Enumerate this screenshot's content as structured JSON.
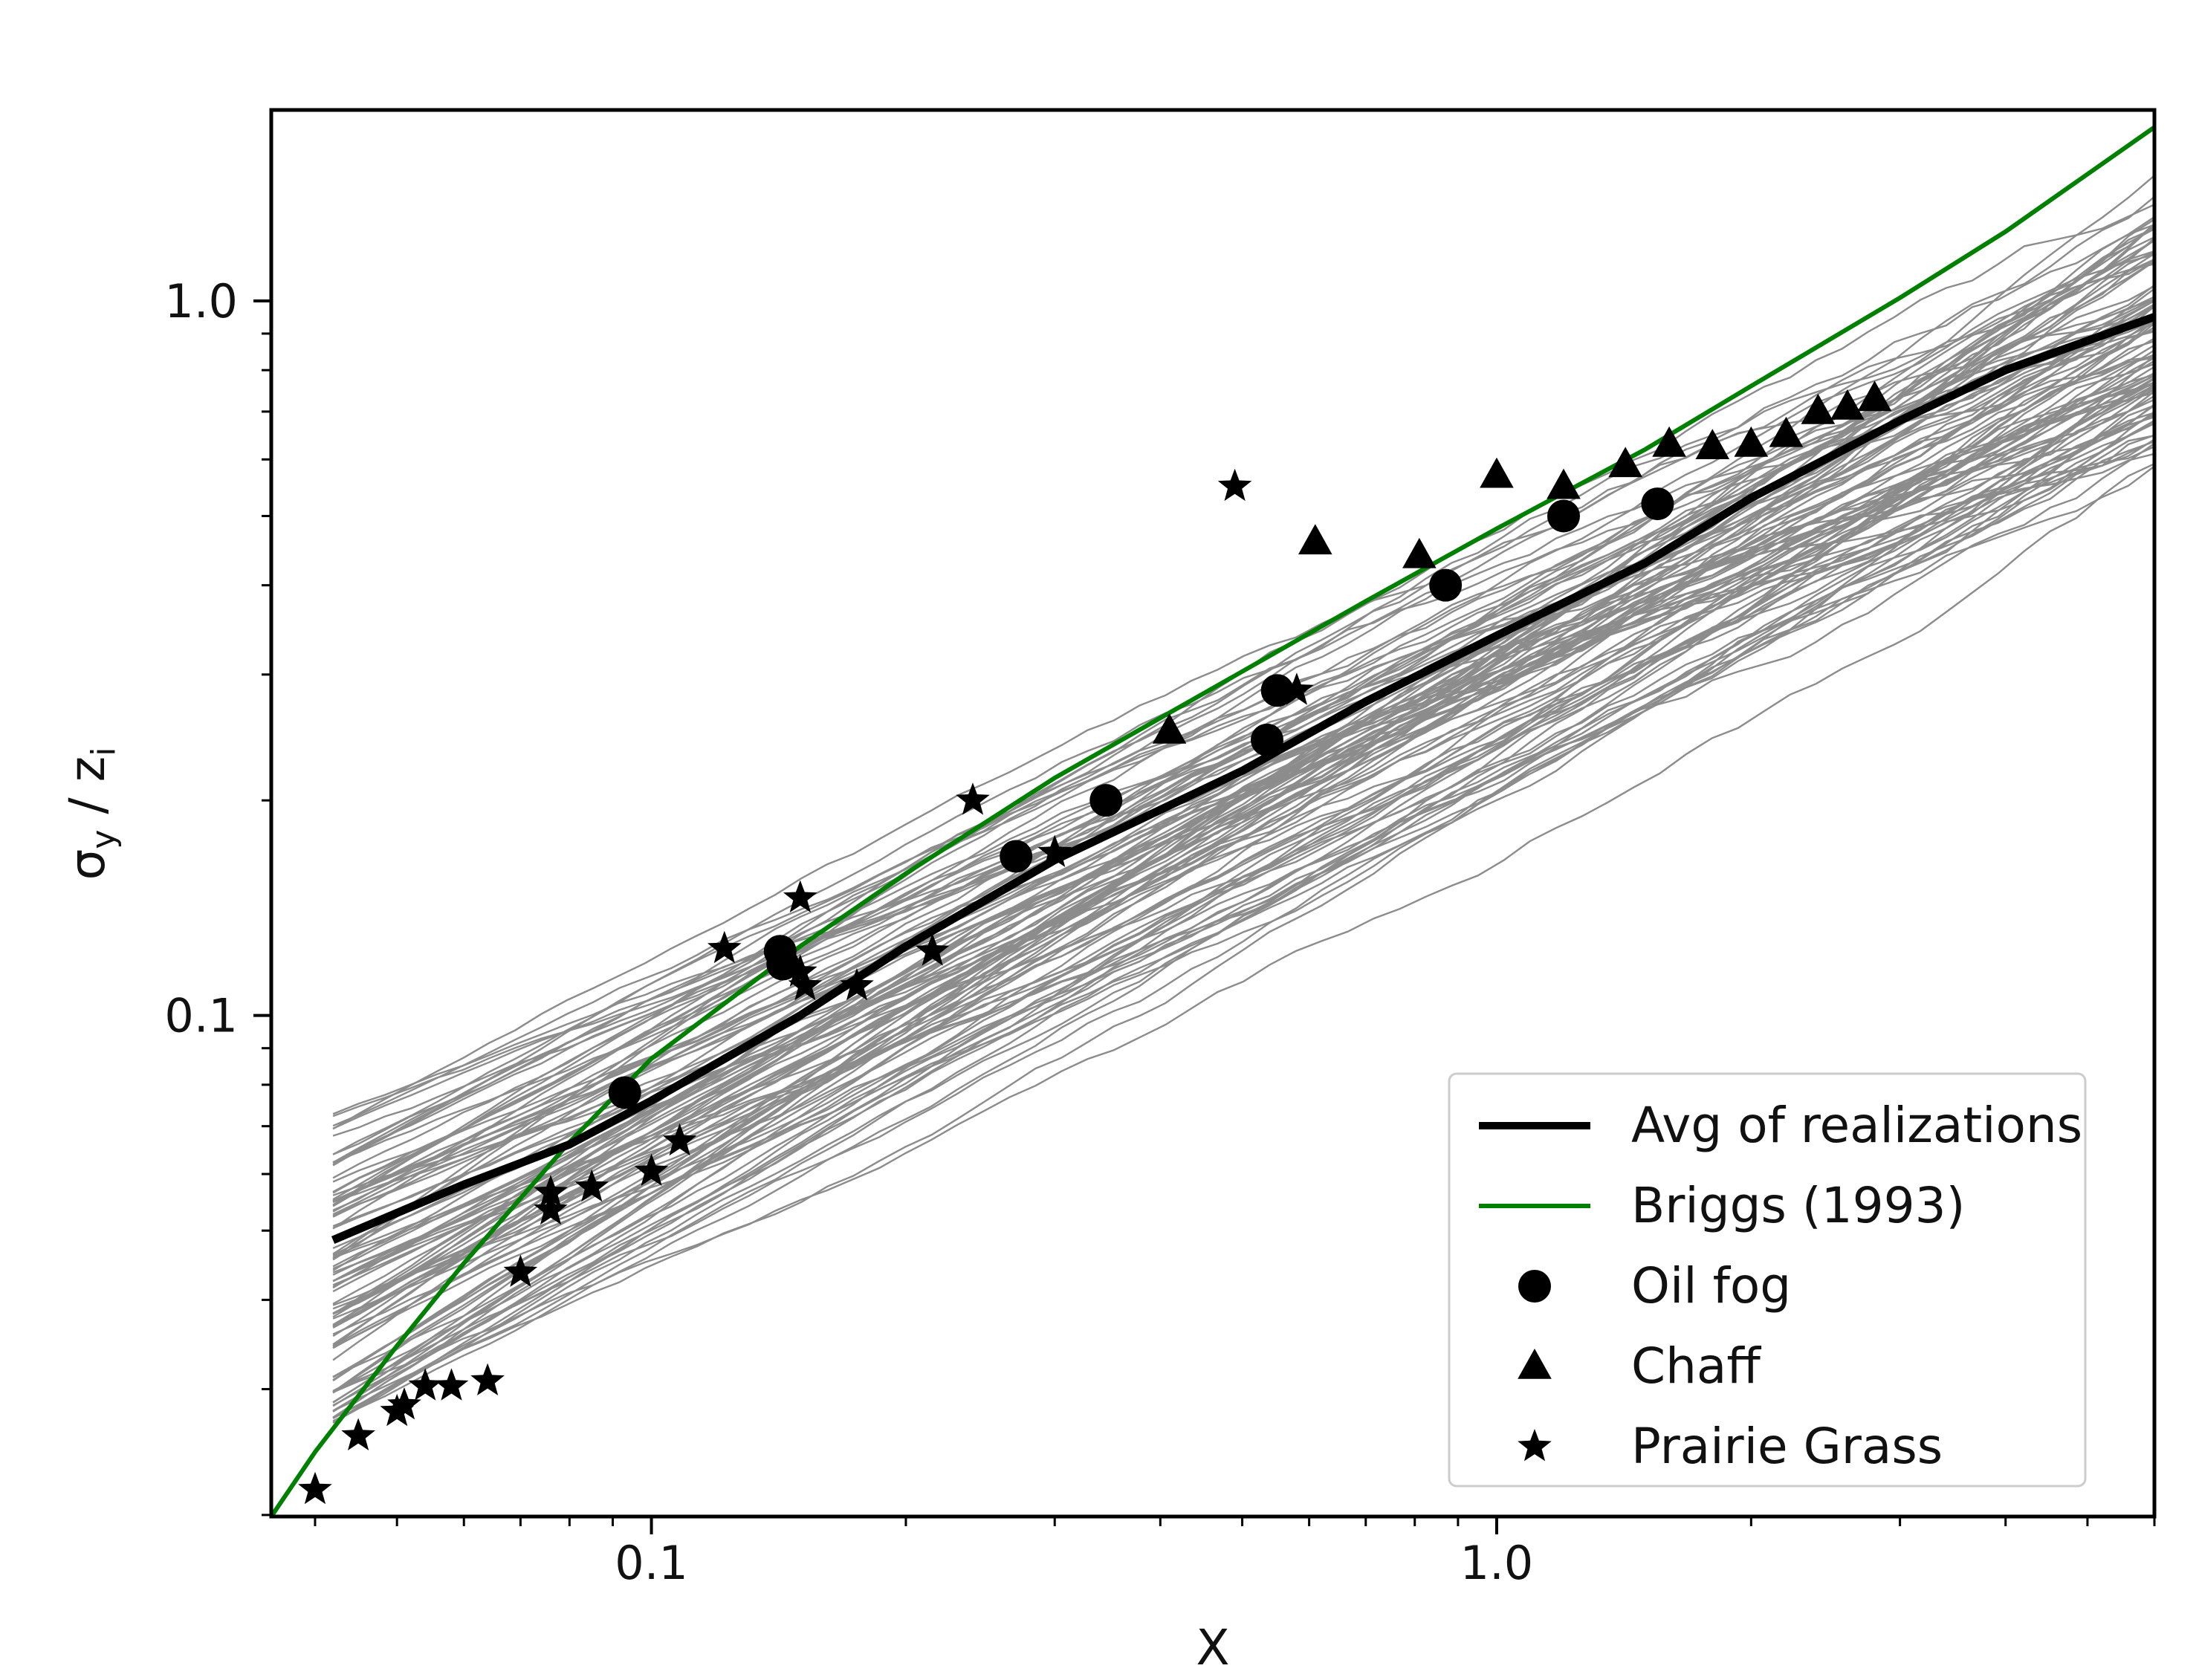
{
  "chart_data": {
    "type": "line",
    "xscale": "log",
    "yscale": "log",
    "xlabel": "X",
    "ylabel": "σy / zi",
    "ylabel_main": "σ",
    "ylabel_sub1": "y",
    "ylabel_mid": " / z",
    "ylabel_sub2": "i",
    "xlim": [
      0.0355,
      6.0
    ],
    "ylim": [
      0.0199,
      1.85
    ],
    "x_ticks": [
      {
        "value": 0.1,
        "label": "0.1"
      },
      {
        "value": 1.0,
        "label": "1.0"
      }
    ],
    "y_ticks": [
      {
        "value": 0.1,
        "label": "0.1"
      },
      {
        "value": 1.0,
        "label": "1.0"
      }
    ],
    "grid": false,
    "legend_position": "lower-right",
    "legend": [
      {
        "label": "Avg of realizations",
        "marker": "line-thick",
        "color": "#000000"
      },
      {
        "label": "Briggs (1993)",
        "marker": "line",
        "color": "#008000"
      },
      {
        "label": "Oil fog",
        "marker": "circle",
        "color": "#000000"
      },
      {
        "label": "Chaff",
        "marker": "triangle",
        "color": "#000000"
      },
      {
        "label": "Prairie Grass",
        "marker": "star",
        "color": "#000000"
      }
    ],
    "series": [
      {
        "name": "Avg of realizations",
        "color": "#000000",
        "x": [
          0.042,
          0.06,
          0.08,
          0.1,
          0.15,
          0.2,
          0.3,
          0.5,
          0.7,
          1.0,
          1.5,
          2.0,
          3.0,
          4.0,
          6.0
        ],
        "y": [
          0.0485,
          0.058,
          0.066,
          0.076,
          0.1,
          0.125,
          0.165,
          0.22,
          0.275,
          0.34,
          0.43,
          0.53,
          0.68,
          0.8,
          0.95
        ]
      },
      {
        "name": "Briggs (1993)",
        "color": "#008000",
        "x": [
          0.0355,
          0.04,
          0.05,
          0.06,
          0.08,
          0.1,
          0.15,
          0.2,
          0.3,
          0.5,
          0.7,
          1.0,
          1.5,
          2.0,
          3.0,
          4.0,
          6.0
        ],
        "y": [
          0.0199,
          0.0245,
          0.0345,
          0.045,
          0.0665,
          0.087,
          0.125,
          0.158,
          0.215,
          0.303,
          0.38,
          0.48,
          0.62,
          0.76,
          1.01,
          1.25,
          1.75
        ]
      },
      {
        "name": "Oil fog",
        "marker": "circle",
        "color": "#000000",
        "x": [
          0.093,
          0.142,
          0.143,
          0.27,
          0.345,
          0.535,
          0.55,
          0.87,
          1.2,
          1.55
        ],
        "y": [
          0.078,
          0.123,
          0.118,
          0.167,
          0.2,
          0.243,
          0.285,
          0.4,
          0.5,
          0.52
        ]
      },
      {
        "name": "Chaff",
        "marker": "triangle",
        "color": "#000000",
        "x": [
          0.41,
          0.61,
          0.81,
          1.0,
          1.2,
          1.42,
          1.6,
          1.8,
          2.0,
          2.2,
          2.4,
          2.6,
          2.8
        ],
        "y": [
          0.25,
          0.46,
          0.44,
          0.57,
          0.55,
          0.59,
          0.63,
          0.625,
          0.63,
          0.65,
          0.7,
          0.71,
          0.73
        ]
      },
      {
        "name": "Prairie Grass",
        "marker": "star",
        "color": "#000000",
        "x": [
          0.04,
          0.045,
          0.05,
          0.051,
          0.054,
          0.058,
          0.064,
          0.07,
          0.076,
          0.076,
          0.085,
          0.1,
          0.108,
          0.122,
          0.15,
          0.15,
          0.152,
          0.175,
          0.215,
          0.24,
          0.3,
          0.49,
          0.58
        ],
        "y": [
          0.0217,
          0.0258,
          0.0279,
          0.0285,
          0.0303,
          0.0303,
          0.0308,
          0.0437,
          0.0534,
          0.0565,
          0.0575,
          0.0605,
          0.0667,
          0.124,
          0.146,
          0.115,
          0.11,
          0.11,
          0.123,
          0.2,
          0.169,
          0.55,
          0.285
        ]
      }
    ],
    "realizations": {
      "count": 100,
      "color": "#8c8c8c",
      "x_range": [
        0.042,
        6.0
      ],
      "y_start_range": [
        0.027,
        0.074
      ],
      "y_end_range": [
        0.6,
        1.3
      ]
    }
  }
}
